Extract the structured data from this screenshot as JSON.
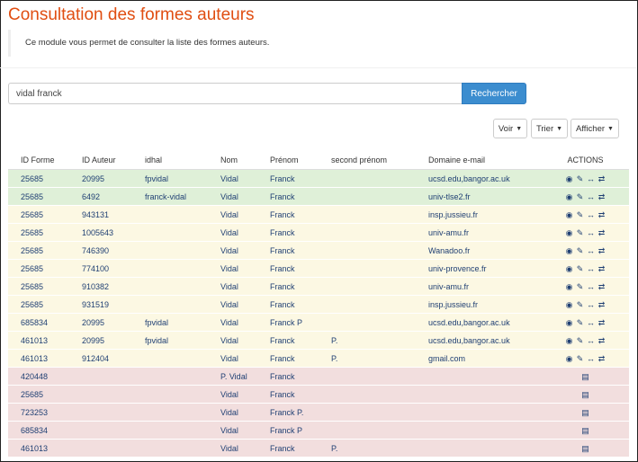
{
  "title": "Consultation des formes auteurs",
  "intro": "Ce module vous permet de consulter la liste des formes auteurs.",
  "search": {
    "value": "vidal franck",
    "button": "Rechercher"
  },
  "toolbar": {
    "voir": "Voir",
    "trier": "Trier",
    "afficher": "Afficher"
  },
  "table": {
    "headers": [
      "ID Forme",
      "ID Auteur",
      "idhal",
      "Nom",
      "Prénom",
      "second prénom",
      "Domaine e-mail",
      "ACTIONS"
    ],
    "rows": [
      {
        "status": "green",
        "cells": [
          "25685",
          "20995",
          "fpvidal",
          "Vidal",
          "Franck",
          "",
          "ucsd.edu,bangor.ac.uk"
        ],
        "actions": "full"
      },
      {
        "status": "green",
        "cells": [
          "25685",
          "6492",
          "franck-vidal",
          "Vidal",
          "Franck",
          "",
          "univ-tlse2.fr"
        ],
        "actions": "full"
      },
      {
        "status": "yellow",
        "cells": [
          "25685",
          "943131",
          "",
          "Vidal",
          "Franck",
          "",
          "insp.jussieu.fr"
        ],
        "actions": "full"
      },
      {
        "status": "yellow",
        "cells": [
          "25685",
          "1005643",
          "",
          "Vidal",
          "Franck",
          "",
          "univ-amu.fr"
        ],
        "actions": "full"
      },
      {
        "status": "yellow",
        "cells": [
          "25685",
          "746390",
          "",
          "Vidal",
          "Franck",
          "",
          "Wanadoo.fr"
        ],
        "actions": "full"
      },
      {
        "status": "yellow",
        "cells": [
          "25685",
          "774100",
          "",
          "Vidal",
          "Franck",
          "",
          "univ-provence.fr"
        ],
        "actions": "full"
      },
      {
        "status": "yellow",
        "cells": [
          "25685",
          "910382",
          "",
          "Vidal",
          "Franck",
          "",
          "univ-amu.fr"
        ],
        "actions": "full"
      },
      {
        "status": "yellow",
        "cells": [
          "25685",
          "931519",
          "",
          "Vidal",
          "Franck",
          "",
          "insp.jussieu.fr"
        ],
        "actions": "full"
      },
      {
        "status": "yellow",
        "cells": [
          "685834",
          "20995",
          "fpvidal",
          "Vidal",
          "Franck P",
          "",
          "ucsd.edu,bangor.ac.uk"
        ],
        "actions": "full"
      },
      {
        "status": "yellow",
        "cells": [
          "461013",
          "20995",
          "fpvidal",
          "Vidal",
          "Franck",
          "P.",
          "ucsd.edu,bangor.ac.uk"
        ],
        "actions": "full"
      },
      {
        "status": "yellow",
        "cells": [
          "461013",
          "912404",
          "",
          "Vidal",
          "Franck",
          "P.",
          "gmail.com"
        ],
        "actions": "full"
      },
      {
        "status": "red",
        "cells": [
          "420448",
          "",
          "",
          "P. Vidal",
          "Franck",
          "",
          ""
        ],
        "actions": "doc"
      },
      {
        "status": "red",
        "cells": [
          "25685",
          "",
          "",
          "Vidal",
          "Franck",
          "",
          ""
        ],
        "actions": "doc"
      },
      {
        "status": "red",
        "cells": [
          "723253",
          "",
          "",
          "Vidal",
          "Franck P.",
          "",
          ""
        ],
        "actions": "doc"
      },
      {
        "status": "red",
        "cells": [
          "685834",
          "",
          "",
          "Vidal",
          "Franck P",
          "",
          ""
        ],
        "actions": "doc"
      },
      {
        "status": "red",
        "cells": [
          "461013",
          "",
          "",
          "Vidal",
          "Franck",
          "P.",
          ""
        ],
        "actions": "doc"
      }
    ]
  },
  "icons": {
    "full": [
      "eye-icon",
      "edit-icon",
      "link-icon",
      "swap-icon"
    ],
    "doc": [
      "document-icon"
    ]
  },
  "colors": {
    "title": "#e04e12",
    "button": "#3c8dcf",
    "green": "#dff0d8",
    "yellow": "#fcf8e3",
    "red": "#f2dede"
  }
}
